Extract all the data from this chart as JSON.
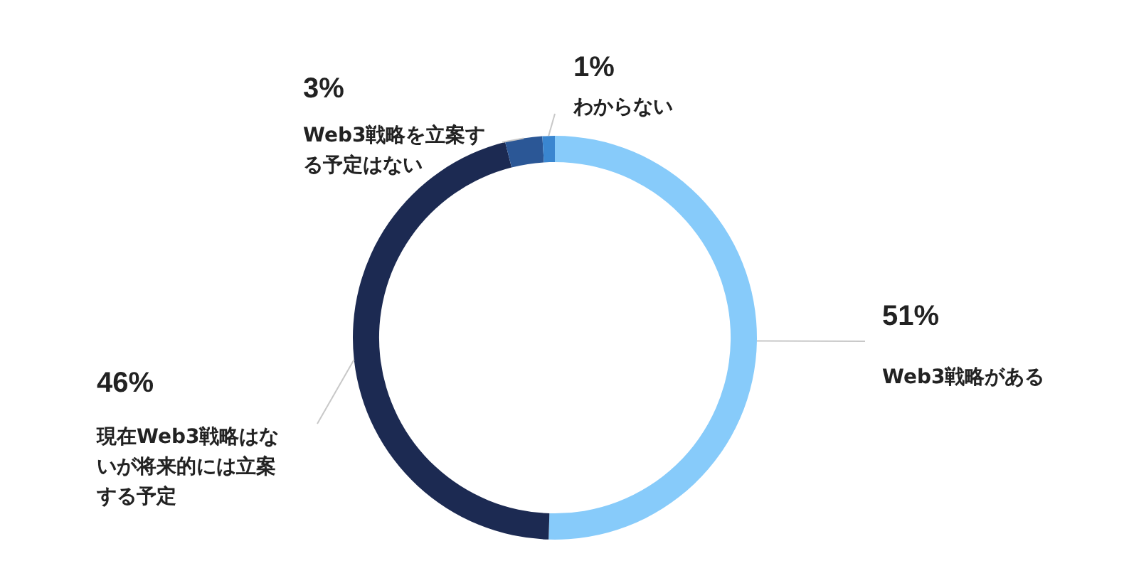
{
  "chart_data": {
    "type": "donut",
    "categories": [
      "Web3戦略がある",
      "現在Web3戦略はないが将来的には立案する予定",
      "Web3戦略を立案する予定はない",
      "わからない"
    ],
    "values": [
      51,
      46,
      3,
      1
    ],
    "colors": [
      "#87cbfa",
      "#1c2a52",
      "#2b5796",
      "#3a86d0"
    ],
    "value_labels": [
      "51%",
      "46%",
      "3%",
      "1%"
    ],
    "legend": false
  }
}
